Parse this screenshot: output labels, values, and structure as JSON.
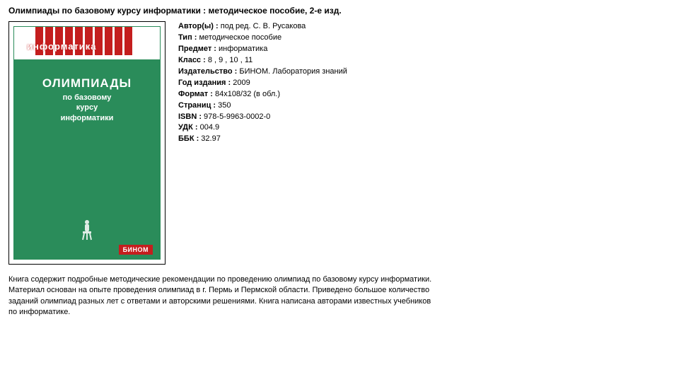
{
  "title": "Олимпиады по базовому курсу информатики : методическое пособие, 2-е изд.",
  "cover": {
    "series": "информатика",
    "main": "ОЛИМПИАДЫ",
    "sub1": "по базовому",
    "sub2": "курсу",
    "sub3": "информатики",
    "publisher": "БИНОМ",
    "bg_color": "#2a8c5a",
    "accent_color": "#c41e1e"
  },
  "meta": [
    {
      "label": "Автор(ы) :",
      "value": " под ред. С. В. Русакова"
    },
    {
      "label": "Тип :",
      "value": " методическое пособие"
    },
    {
      "label": "Предмет :",
      "value": " информатика"
    },
    {
      "label": "Класс :",
      "value": " 8 , 9 , 10 , 11"
    },
    {
      "label": "Издательство :",
      "value": " БИНОМ. Лаборатория знаний"
    },
    {
      "label": "Год издания :",
      "value": " 2009"
    },
    {
      "label": "Формат :",
      "value": " 84х108/32 (в обл.)"
    },
    {
      "label": "Страниц :",
      "value": " 350"
    },
    {
      "label": "ISBN :",
      "value": " 978-5-9963-0002-0"
    },
    {
      "label": "УДК :",
      "value": " 004.9"
    },
    {
      "label": "ББК :",
      "value": " 32.97"
    }
  ],
  "description": "Книга содержит подробные методические рекомендации по проведению олимпиад по базовому курсу информатики. Материал основан на опыте проведения олимпиад в г. Пермь и Пермской области. Приведено большое количество заданий олимпиад разных лет с ответами и авторскими решениями. Книга написана авторами известных учебников по информатике."
}
